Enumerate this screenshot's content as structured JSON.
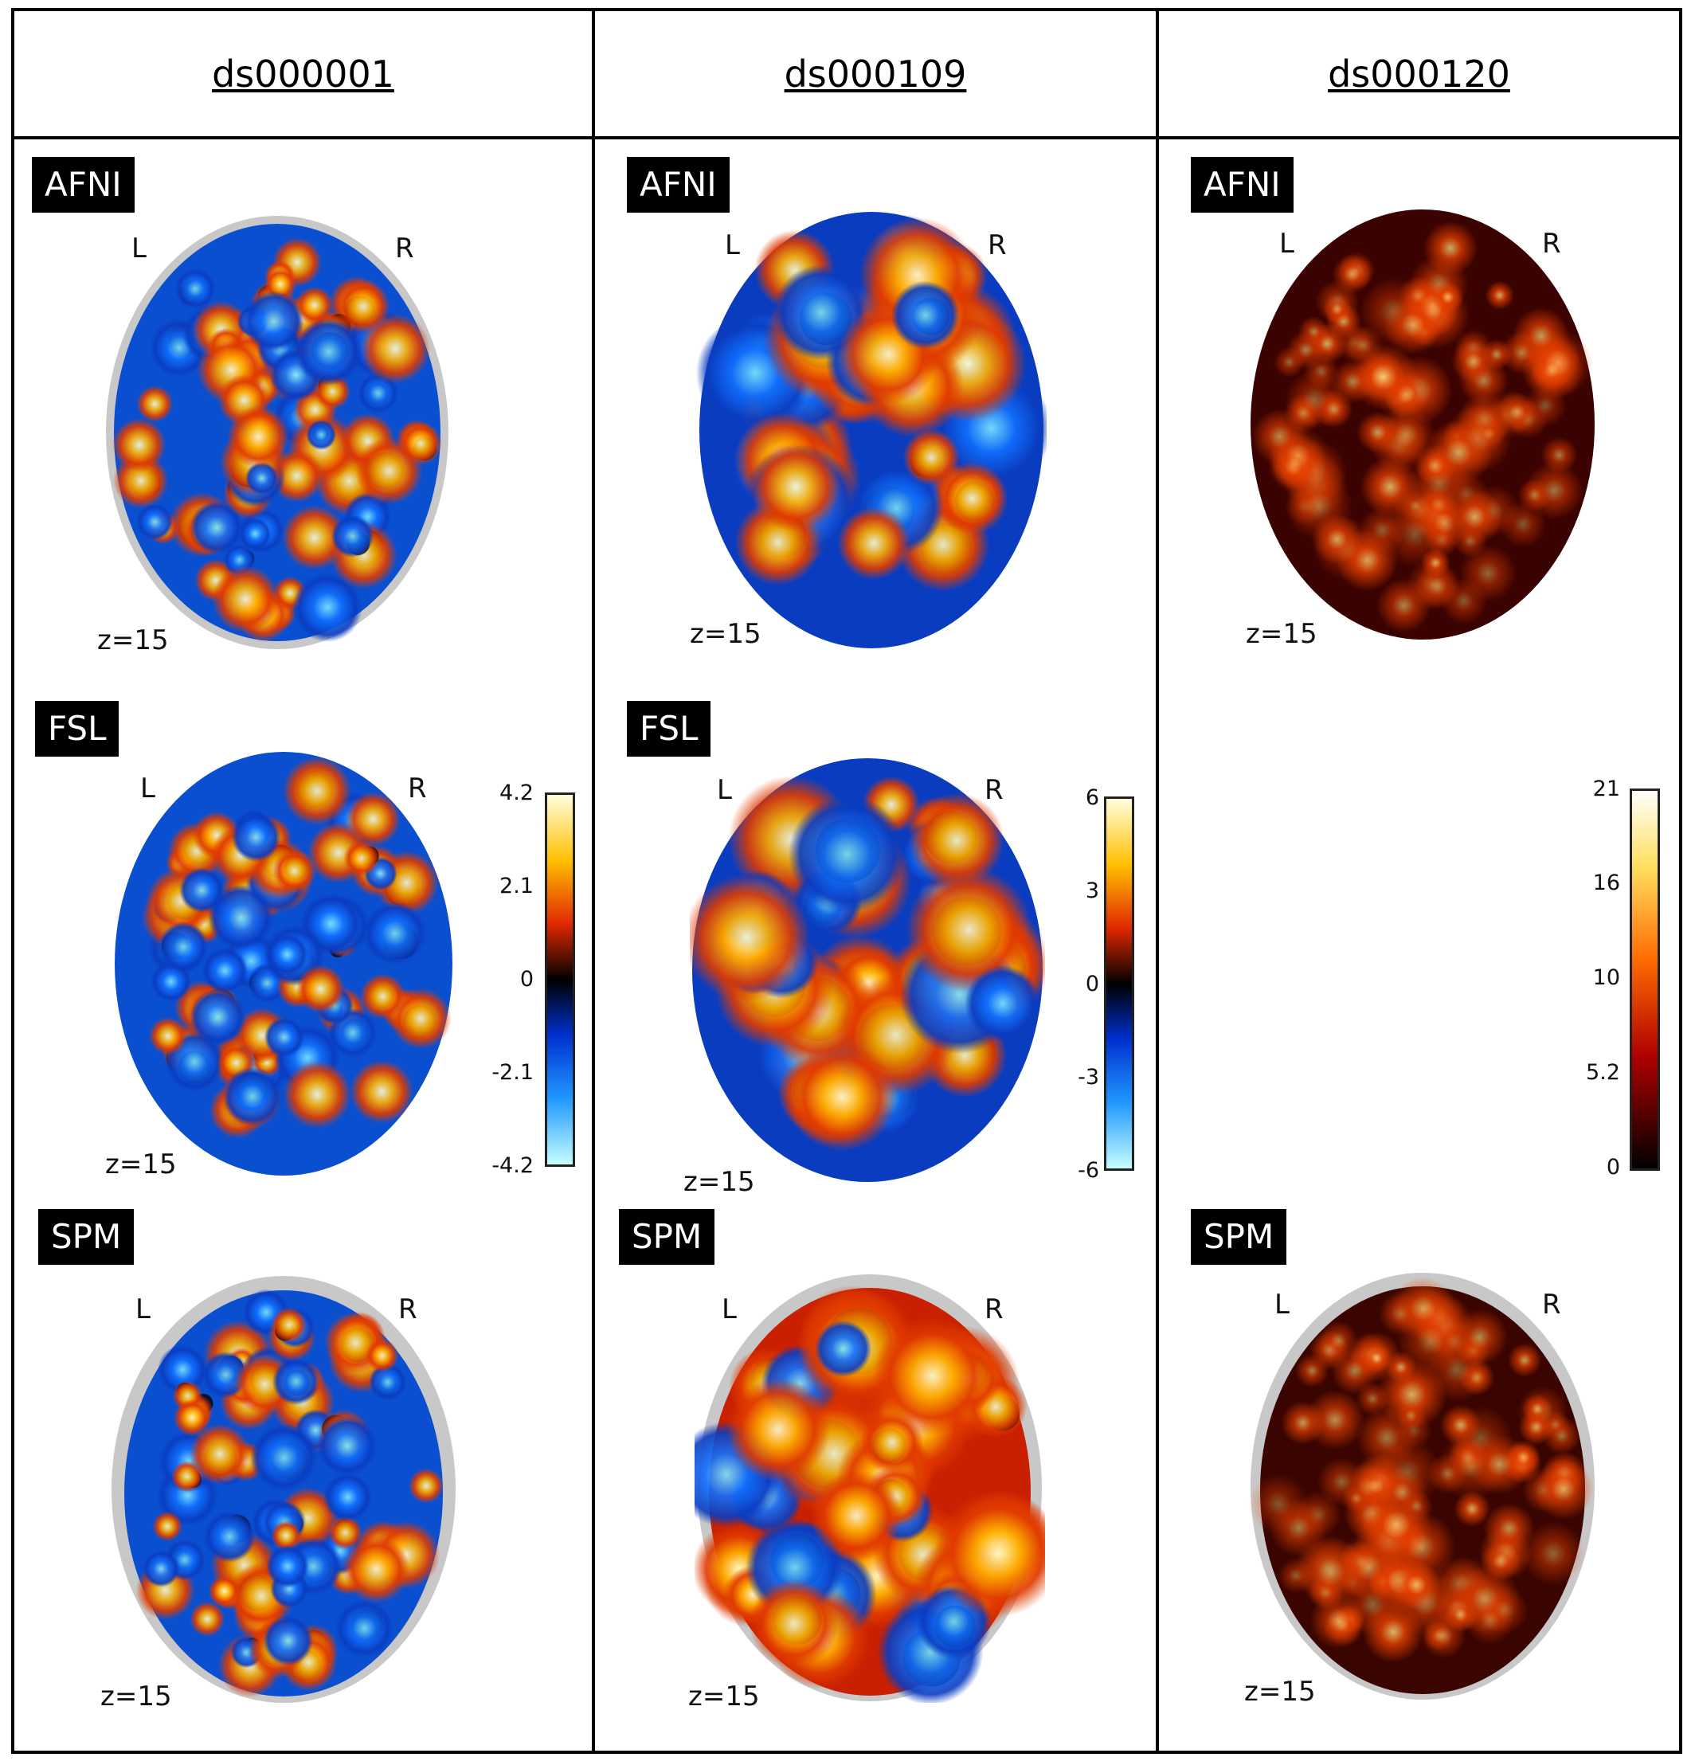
{
  "columns": [
    {
      "title": "ds000001"
    },
    {
      "title": "ds000109"
    },
    {
      "title": "ds000120"
    }
  ],
  "panels": {
    "c1_afni": {
      "label": "AFNI",
      "left": "L",
      "right": "R",
      "z": "z=15"
    },
    "c1_fsl": {
      "label": "FSL",
      "left": "L",
      "right": "R",
      "z": "z=15"
    },
    "c1_spm": {
      "label": "SPM",
      "left": "L",
      "right": "R",
      "z": "z=15"
    },
    "c2_afni": {
      "label": "AFNI",
      "left": "L",
      "right": "R",
      "z": "z=15"
    },
    "c2_fsl": {
      "label": "FSL",
      "left": "L",
      "right": "R",
      "z": "z=15"
    },
    "c2_spm": {
      "label": "SPM",
      "left": "L",
      "right": "R",
      "z": "z=15"
    },
    "c3_afni": {
      "label": "AFNI",
      "left": "L",
      "right": "R",
      "z": "z=15"
    },
    "c3_spm": {
      "label": "SPM",
      "left": "L",
      "right": "R",
      "z": "z=15"
    }
  },
  "colorbars": {
    "c1": {
      "ticks": [
        "4.2",
        "2.1",
        "0",
        "-2.1",
        "-4.2"
      ],
      "colormap": "cold-hot"
    },
    "c2": {
      "ticks": [
        "6",
        "3",
        "0",
        "-3",
        "-6"
      ],
      "colormap": "cold-hot"
    },
    "c3": {
      "ticks": [
        "21",
        "16",
        "10",
        "5.2",
        "0"
      ],
      "colormap": "hot"
    }
  },
  "colors": {
    "hot_max": "#ffffd0",
    "hot_mid": "#ff8a00",
    "red": "#c81e00",
    "dark": "#1a0000",
    "blue": "#0a50d8",
    "cyan": "#7ee8ff",
    "skull": "#c8c8c8"
  }
}
